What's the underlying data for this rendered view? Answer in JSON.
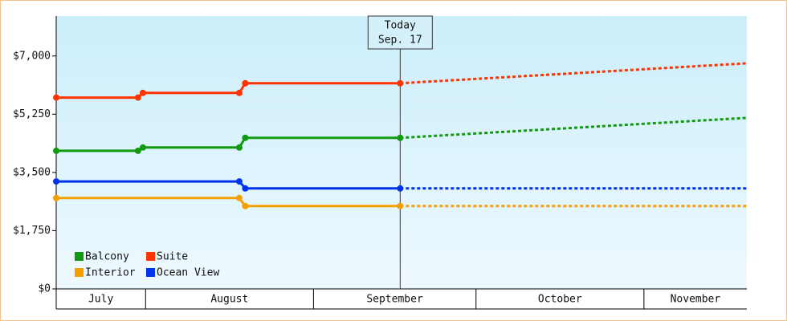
{
  "chart_data": {
    "type": "line",
    "xlim": [
      14.5,
      142
    ],
    "xticks": [
      {
        "value": 0,
        "label": "July"
      },
      {
        "value": 31,
        "label": "August"
      },
      {
        "value": 62,
        "label": "September"
      },
      {
        "value": 92,
        "label": "October"
      },
      {
        "value": 123,
        "label": "November"
      }
    ],
    "ylim": [
      0,
      8200
    ],
    "yticks": [
      {
        "value": 0,
        "label": "$0"
      },
      {
        "value": 1750,
        "label": "$1,750"
      },
      {
        "value": 3500,
        "label": "$3,500"
      },
      {
        "value": 5250,
        "label": "$5,250"
      },
      {
        "value": 7000,
        "label": "$7,000"
      }
    ],
    "today": {
      "x": 78,
      "title": "Today",
      "date": "Sep. 17"
    },
    "legend": "bottom-left",
    "series": [
      {
        "name": "Balcony",
        "color": "#119911",
        "x": [
          14.5,
          29.6,
          30.5,
          48.3,
          49.4,
          78
        ],
        "values": [
          4150,
          4150,
          4250,
          4250,
          4540,
          4540
        ],
        "forecast": {
          "x": [
            78,
            142
          ],
          "values": [
            4540,
            5140
          ]
        }
      },
      {
        "name": "Suite",
        "color": "#ff3300",
        "x": [
          14.5,
          29.6,
          30.5,
          48.3,
          49.4,
          78
        ],
        "values": [
          5750,
          5750,
          5890,
          5890,
          6180,
          6180
        ],
        "forecast": {
          "x": [
            78,
            142
          ],
          "values": [
            6180,
            6780
          ]
        }
      },
      {
        "name": "Interior",
        "color": "#f5a000",
        "x": [
          14.5,
          48.3,
          49.4,
          78
        ],
        "values": [
          2730,
          2730,
          2490,
          2490
        ],
        "forecast": {
          "x": [
            78,
            142
          ],
          "values": [
            2490,
            2490
          ]
        }
      },
      {
        "name": "Ocean View",
        "color": "#0033ee",
        "x": [
          14.5,
          48.3,
          49.4,
          78
        ],
        "values": [
          3230,
          3230,
          3020,
          3020
        ],
        "forecast": {
          "x": [
            78,
            142
          ],
          "values": [
            3020,
            3020
          ]
        }
      }
    ]
  }
}
